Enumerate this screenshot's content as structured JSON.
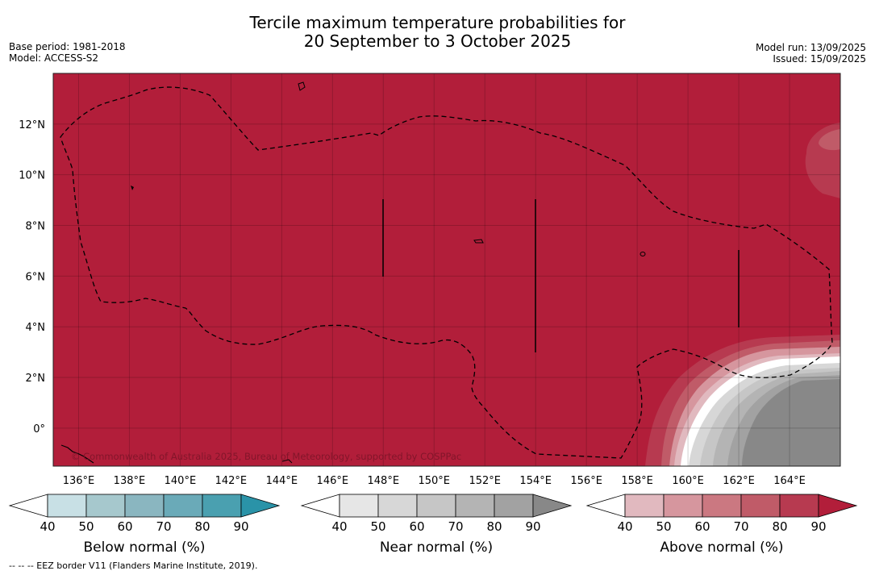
{
  "header": {
    "title_line1": "Tercile maximum temperature probabilities for",
    "title_line2": "20 September to 3 October 2025",
    "base_period": "Base period: 1981-2018",
    "model": "Model: ACCESS-S2",
    "model_run": "Model run: 13/09/2025",
    "issued": "Issued: 15/09/2025"
  },
  "map": {
    "lon_range": [
      135.0,
      166.0
    ],
    "lat_range": [
      -1.5,
      14.0
    ],
    "lat_ticks": [
      "12°N",
      "10°N",
      "8°N",
      "6°N",
      "4°N",
      "2°N",
      "0°"
    ],
    "lon_ticks": [
      "136°E",
      "138°E",
      "140°E",
      "142°E",
      "144°E",
      "146°E",
      "148°E",
      "150°E",
      "152°E",
      "154°E",
      "156°E",
      "158°E",
      "160°E",
      "162°E",
      "164°E"
    ],
    "background_category": "Above normal",
    "background_probability": "90",
    "near_normal_region": "Near normal, south-east corner",
    "colors": {
      "above_90": "#b21e3a",
      "near_90": "#888888",
      "ocean_bg": "#ffffff"
    },
    "watermark": "© Commonwealth of Australia 2025, Bureau of Meteorology, supported by COSPPac",
    "eez_line_style": "dashed"
  },
  "legends": [
    {
      "title": "Below normal (%)",
      "ticks": [
        "40",
        "50",
        "60",
        "70",
        "80",
        "90"
      ],
      "colors": [
        "#ffffff",
        "#c8e0e5",
        "#a6c8cd",
        "#8ab6c0",
        "#6aaab8",
        "#4aa0b0",
        "#2a93a8"
      ]
    },
    {
      "title": "Near normal (%)",
      "ticks": [
        "40",
        "50",
        "60",
        "70",
        "80",
        "90"
      ],
      "colors": [
        "#ffffff",
        "#e6e6e6",
        "#d7d7d7",
        "#c6c6c6",
        "#b4b4b4",
        "#a2a2a2",
        "#888888"
      ]
    },
    {
      "title": "Above normal (%)",
      "ticks": [
        "40",
        "50",
        "60",
        "70",
        "80",
        "90"
      ],
      "colors": [
        "#ffffff",
        "#e1b9bf",
        "#d6969e",
        "#cb7881",
        "#c05b68",
        "#b73a50",
        "#b21e3a"
      ]
    }
  ],
  "footnote": "-- -- -- EEZ border V11 (Flanders Marine Institute, 2019)."
}
